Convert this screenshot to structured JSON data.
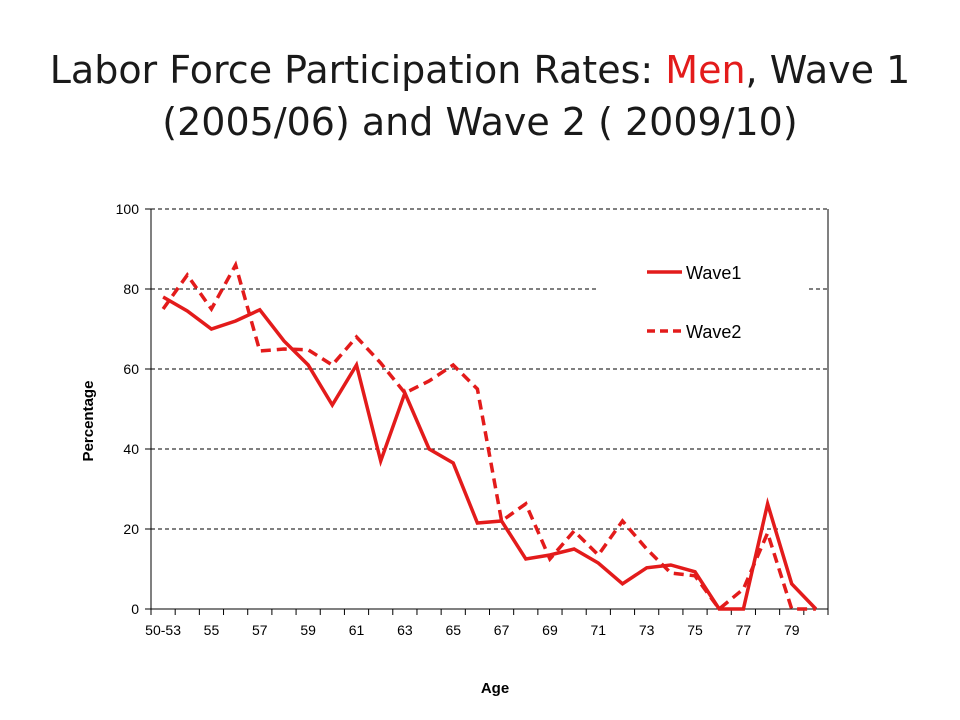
{
  "slide": {
    "title_part1": "Labor Force Participation Rates: ",
    "title_highlight": "Men",
    "title_part2": ", Wave 1",
    "title_line2": "(2005/06) and Wave 2 ( 2009/10)",
    "highlight_color": "#e31b1b"
  },
  "chart_data": {
    "type": "line",
    "xlabel": "Age",
    "ylabel": "Percentage",
    "ylim": [
      0,
      100
    ],
    "yticks": [
      0,
      20,
      40,
      60,
      80,
      100
    ],
    "grid": "horizontal dashed",
    "legend_position": "top-right",
    "x_tick_labels": [
      "50-53",
      "55",
      "57",
      "59",
      "61",
      "63",
      "65",
      "67",
      "69",
      "71",
      "73",
      "75",
      "77",
      "79"
    ],
    "x": [
      "50-53",
      "54",
      "55",
      "56",
      "57",
      "58",
      "59",
      "60",
      "61",
      "62",
      "63",
      "64",
      "65",
      "66",
      "67",
      "68",
      "69",
      "70",
      "71",
      "72",
      "73",
      "74",
      "75",
      "76",
      "77",
      "78",
      "79",
      "80"
    ],
    "series": [
      {
        "name": "Wave1",
        "color": "#e31b1b",
        "style": "solid",
        "values": [
          78,
          74.5,
          70,
          72,
          74.8,
          67,
          61,
          51,
          61,
          37,
          54,
          40,
          36.5,
          21.5,
          22,
          12.5,
          13.5,
          15,
          11.5,
          6.3,
          10.3,
          11,
          9.3,
          0,
          0,
          26.3,
          6.3,
          0
        ]
      },
      {
        "name": "Wave2",
        "color": "#e31b1b",
        "style": "dashed",
        "values": [
          75,
          83.5,
          75,
          86,
          64.5,
          65,
          64.8,
          61,
          68,
          61.5,
          54,
          57,
          61,
          55,
          22,
          26.3,
          12.5,
          19.5,
          13.5,
          22,
          15,
          9,
          8.3,
          0,
          5,
          19,
          0,
          0
        ]
      }
    ]
  }
}
